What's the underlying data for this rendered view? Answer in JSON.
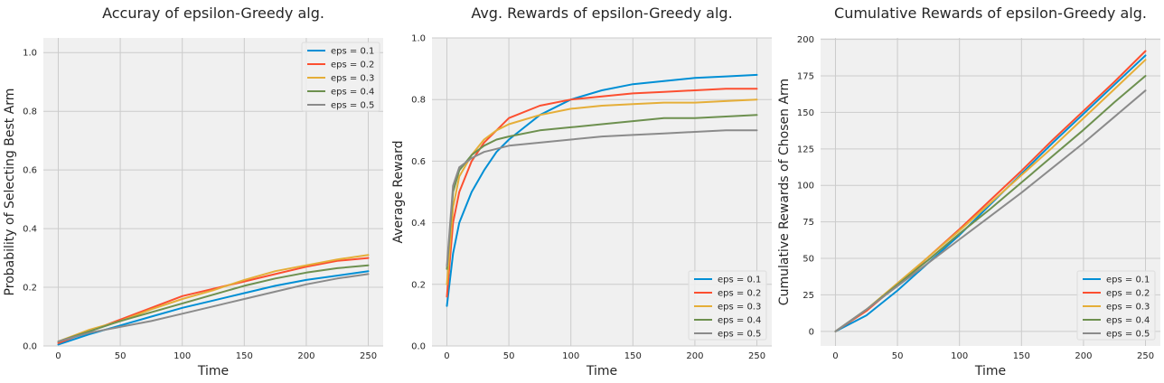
{
  "colors": [
    "#008fd5",
    "#fc4f30",
    "#e5ae38",
    "#6d904f",
    "#8b8b8b"
  ],
  "chart_data": [
    {
      "type": "line",
      "title": "Accuray of epsilon-Greedy alg.",
      "xlabel": "Time",
      "ylabel": "Probability of Selecting Best Arm",
      "xlim": [
        -12,
        262
      ],
      "ylim": [
        0,
        1.05
      ],
      "xticks": [
        0,
        50,
        100,
        150,
        200,
        250
      ],
      "yticks": [
        0.0,
        0.2,
        0.4,
        0.6,
        0.8,
        1.0
      ],
      "xtick_labels": [
        "0",
        "50",
        "100",
        "150",
        "200",
        "250"
      ],
      "ytick_labels": [
        "0.0",
        "0.2",
        "0.4",
        "0.6",
        "0.8",
        "1.0"
      ],
      "grid": true,
      "legend": "top-right",
      "x": [
        0,
        25,
        50,
        75,
        100,
        125,
        150,
        175,
        200,
        225,
        250
      ],
      "series": [
        {
          "name": "eps = 0.1",
          "values": [
            0.005,
            0.04,
            0.07,
            0.1,
            0.13,
            0.155,
            0.18,
            0.205,
            0.225,
            0.24,
            0.255
          ]
        },
        {
          "name": "eps = 0.2",
          "values": [
            0.01,
            0.05,
            0.09,
            0.13,
            0.17,
            0.195,
            0.22,
            0.245,
            0.27,
            0.29,
            0.3
          ]
        },
        {
          "name": "eps = 0.3",
          "values": [
            0.015,
            0.055,
            0.085,
            0.125,
            0.16,
            0.19,
            0.225,
            0.255,
            0.275,
            0.295,
            0.31
          ]
        },
        {
          "name": "eps = 0.4",
          "values": [
            0.015,
            0.05,
            0.085,
            0.115,
            0.145,
            0.175,
            0.205,
            0.23,
            0.25,
            0.265,
            0.275
          ]
        },
        {
          "name": "eps = 0.5",
          "values": [
            0.015,
            0.045,
            0.065,
            0.085,
            0.11,
            0.135,
            0.16,
            0.185,
            0.21,
            0.23,
            0.245
          ]
        }
      ]
    },
    {
      "type": "line",
      "title": "Avg. Rewards of epsilon-Greedy alg.",
      "xlabel": "Time",
      "ylabel": "Average Reward",
      "xlim": [
        -12,
        262
      ],
      "ylim": [
        0,
        1.0
      ],
      "xticks": [
        0,
        50,
        100,
        150,
        200,
        250
      ],
      "yticks": [
        0.0,
        0.2,
        0.4,
        0.6,
        0.8,
        1.0
      ],
      "xtick_labels": [
        "0",
        "50",
        "100",
        "150",
        "200",
        "250"
      ],
      "ytick_labels": [
        "0.0",
        "0.2",
        "0.4",
        "0.6",
        "0.8",
        "1.0"
      ],
      "grid": true,
      "legend": "bottom-right",
      "x": [
        0,
        5,
        10,
        20,
        30,
        40,
        50,
        75,
        100,
        125,
        150,
        175,
        200,
        225,
        250
      ],
      "series": [
        {
          "name": "eps = 0.1",
          "values": [
            0.13,
            0.3,
            0.4,
            0.5,
            0.57,
            0.63,
            0.67,
            0.75,
            0.8,
            0.83,
            0.85,
            0.86,
            0.87,
            0.875,
            0.88
          ]
        },
        {
          "name": "eps = 0.2",
          "values": [
            0.16,
            0.4,
            0.5,
            0.6,
            0.66,
            0.7,
            0.74,
            0.78,
            0.8,
            0.81,
            0.82,
            0.825,
            0.83,
            0.835,
            0.835
          ]
        },
        {
          "name": "eps = 0.3",
          "values": [
            0.2,
            0.45,
            0.55,
            0.62,
            0.67,
            0.7,
            0.72,
            0.75,
            0.77,
            0.78,
            0.785,
            0.79,
            0.79,
            0.795,
            0.8
          ]
        },
        {
          "name": "eps = 0.4",
          "values": [
            0.25,
            0.5,
            0.57,
            0.62,
            0.65,
            0.67,
            0.68,
            0.7,
            0.71,
            0.72,
            0.73,
            0.74,
            0.74,
            0.745,
            0.75
          ]
        },
        {
          "name": "eps = 0.5",
          "values": [
            0.26,
            0.52,
            0.58,
            0.61,
            0.63,
            0.64,
            0.65,
            0.66,
            0.67,
            0.68,
            0.685,
            0.69,
            0.695,
            0.7,
            0.7
          ]
        }
      ]
    },
    {
      "type": "line",
      "title": "Cumulative Rewards of epsilon-Greedy alg.",
      "xlabel": "Time",
      "ylabel": "Cumulative Rewards of Chosen Arm",
      "xlim": [
        -12,
        262
      ],
      "ylim": [
        -10,
        201
      ],
      "xticks": [
        0,
        50,
        100,
        150,
        200,
        250
      ],
      "yticks": [
        0,
        25,
        50,
        75,
        100,
        125,
        150,
        175,
        200
      ],
      "xtick_labels": [
        "0",
        "50",
        "100",
        "150",
        "200",
        "250"
      ],
      "ytick_labels": [
        "0",
        "25",
        "50",
        "75",
        "100",
        "125",
        "150",
        "175",
        "200"
      ],
      "grid": true,
      "legend": "bottom-right",
      "x": [
        0,
        25,
        50,
        75,
        100,
        125,
        150,
        175,
        200,
        225,
        250
      ],
      "series": [
        {
          "name": "eps = 0.1",
          "values": [
            0,
            11,
            28,
            47,
            66,
            87,
            108,
            129,
            149,
            169,
            189
          ]
        },
        {
          "name": "eps = 0.2",
          "values": [
            0,
            14,
            32,
            51,
            70,
            90,
            110,
            131,
            151,
            171,
            192
          ]
        },
        {
          "name": "eps = 0.3",
          "values": [
            0,
            15,
            33,
            51,
            69,
            88,
            107,
            126,
            146,
            166,
            186
          ]
        },
        {
          "name": "eps = 0.4",
          "values": [
            0,
            15,
            32,
            49,
            67,
            84,
            102,
            120,
            138,
            157,
            175
          ]
        },
        {
          "name": "eps = 0.5",
          "values": [
            0,
            15,
            31,
            47,
            63,
            79,
            95,
            112,
            129,
            147,
            165
          ]
        }
      ]
    }
  ]
}
